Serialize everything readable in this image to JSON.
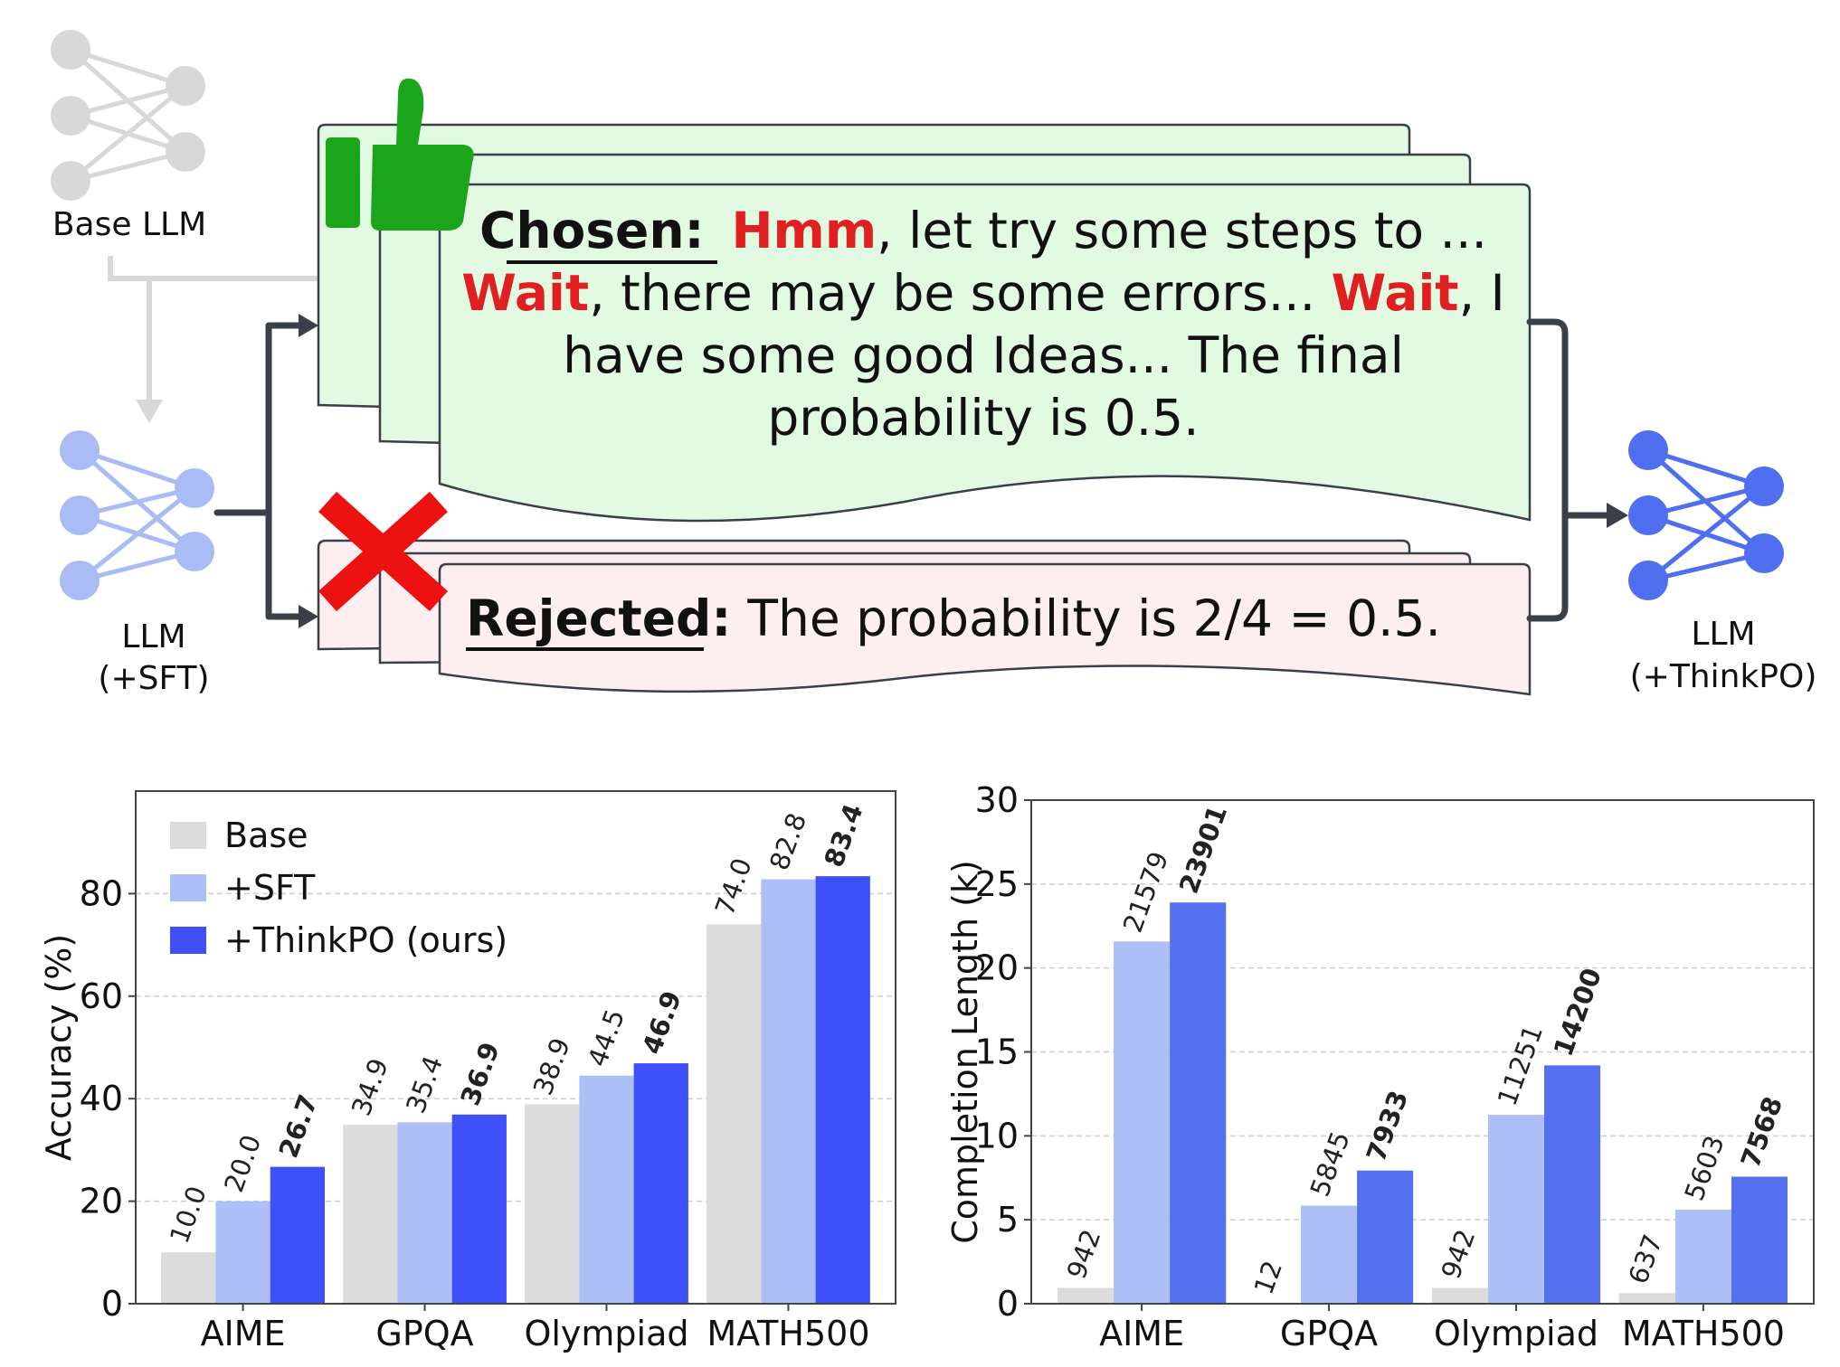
{
  "diagram": {
    "base_llm_label": "Base LLM",
    "sft_llm_label_line1": "LLM",
    "sft_llm_label_line2": "(+SFT)",
    "thinkpo_llm_label_line1": "LLM",
    "thinkpo_llm_label_line2": "(+ThinkPO)",
    "chosen": {
      "heading": "Chosen:",
      "line1_highlight": "Hmm",
      "line1_rest": ", let try some steps to ...",
      "line2_highlight_a": "Wait",
      "line2_mid": ", there may be some errors... ",
      "line2_highlight_b": "Wait",
      "line2_end": ", I",
      "line3": "have some good Ideas... The final",
      "line4": "probability is 0.5."
    },
    "rejected": {
      "heading": "Rejected:",
      "text": "The probability is 2/4 = 0.5."
    },
    "colors": {
      "highlight": "#e02020",
      "chosen_fill": "#e2f9e2",
      "rejected_fill": "#fdefef",
      "thumb": "#1aa51a",
      "cross": "#ee1111",
      "sft_node": "#a9bcf5",
      "thinkpo_node": "#4f6ef0",
      "base_node": "#d8d8d8"
    }
  },
  "chart_data": [
    {
      "type": "bar",
      "title": "",
      "xlabel": "",
      "ylabel": "Accuracy (%)",
      "categories": [
        "AIME",
        "GPQA",
        "Olympiad",
        "MATH500"
      ],
      "ylim": [
        0,
        100
      ],
      "yticks": [
        "0",
        "20",
        "40",
        "60",
        "80"
      ],
      "ytick_values": [
        0,
        20,
        40,
        60,
        80
      ],
      "grid": "y dashed",
      "legend_position": "top-left",
      "series": [
        {
          "name": "Base",
          "color": "#dcdcdc",
          "values": [
            10.0,
            34.9,
            38.9,
            74.0
          ],
          "labels": [
            "10.0",
            "34.9",
            "38.9",
            "74.0"
          ],
          "bold": false
        },
        {
          "name": "+SFT",
          "color": "#adbff7",
          "values": [
            20.0,
            35.4,
            44.5,
            82.8
          ],
          "labels": [
            "20.0",
            "35.4",
            "44.5",
            "82.8"
          ],
          "bold": false
        },
        {
          "name": "+ThinkPO (ours)",
          "color": "#4050f8",
          "values": [
            26.7,
            36.9,
            46.9,
            83.4
          ],
          "labels": [
            "26.7",
            "36.9",
            "46.9",
            "83.4"
          ],
          "bold": true
        }
      ]
    },
    {
      "type": "bar",
      "title": "",
      "xlabel": "",
      "ylabel": "Completion Length (k)",
      "categories": [
        "AIME",
        "GPQA",
        "Olympiad",
        "MATH500"
      ],
      "ylim": [
        0,
        30
      ],
      "yticks": [
        "0",
        "5",
        "10",
        "15",
        "20",
        "25",
        "30"
      ],
      "ytick_values": [
        0,
        5,
        10,
        15,
        20,
        25,
        30
      ],
      "grid": "y dashed",
      "legend_position": "none",
      "series": [
        {
          "name": "Base",
          "color": "#dcdcdc",
          "values": [
            0.942,
            0.012,
            0.942,
            0.637
          ],
          "labels": [
            "942",
            "12",
            "942",
            "637"
          ],
          "bold": false
        },
        {
          "name": "+SFT",
          "color": "#adbff7",
          "values": [
            21.579,
            5.845,
            11.251,
            5.603
          ],
          "labels": [
            "21579",
            "5845",
            "11251",
            "5603"
          ],
          "bold": false
        },
        {
          "name": "+ThinkPO",
          "color": "#5570ef",
          "values": [
            23.901,
            7.933,
            14.2,
            7.568
          ],
          "labels": [
            "23901",
            "7933",
            "14200",
            "7568"
          ],
          "bold": true
        }
      ]
    }
  ]
}
